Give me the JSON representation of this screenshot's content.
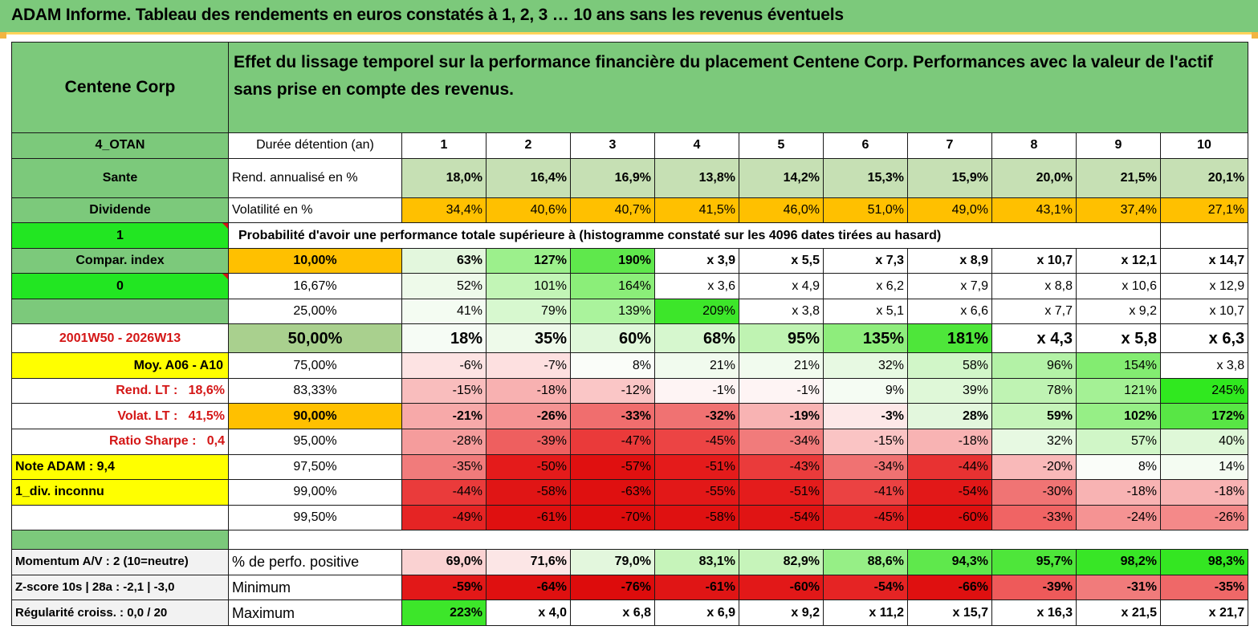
{
  "title": "ADAM Informe. Tableau des rendements en euros constatés à 1, 2, 3 … 10 ans sans les revenus éventuels",
  "header": {
    "company": "Centene Corp",
    "description": "Effet du lissage temporel sur la performance financière du placement Centene Corp. Performances avec la valeur de l'actif sans prise en compte des revenus."
  },
  "left": {
    "code": "4_OTAN",
    "sector": "Sante",
    "dividend_label": "Dividende",
    "value_1": "1",
    "compar_index": "Compar. index",
    "value_0": "0",
    "period": "2001W50 - 2026W13",
    "moy": "Moy. A06 - A10",
    "rend_lt_label": "Rend. LT :",
    "rend_lt_value": "18,6%",
    "volat_lt_label": "Volat. LT :",
    "volat_lt_value": "41,5%",
    "sharpe_label": "Ratio Sharpe :",
    "sharpe_value": "0,4",
    "note": "Note ADAM : 9,4",
    "div_note": "1_div. inconnu",
    "momentum": "Momentum A/V : 2 (10=neutre)",
    "zscore": "Z-score 10s | 28a : -2,1 | -3,0",
    "regularite": "Régularité croiss. : 0,0 / 20"
  },
  "table": {
    "duration_label": "Durée détention (an)",
    "years": [
      "1",
      "2",
      "3",
      "4",
      "5",
      "6",
      "7",
      "8",
      "9",
      "10"
    ],
    "rend_label": "Rend. annualisé en %",
    "rend": [
      "18,0%",
      "16,4%",
      "16,9%",
      "13,8%",
      "14,2%",
      "15,3%",
      "15,9%",
      "20,0%",
      "21,5%",
      "20,1%"
    ],
    "vol_label": "Volatilité en %",
    "vol": [
      "34,4%",
      "40,6%",
      "40,7%",
      "41,5%",
      "46,0%",
      "51,0%",
      "49,0%",
      "43,1%",
      "37,4%",
      "27,1%"
    ],
    "prob_title": "Probabilité d'avoir une performance totale supérieure à (histogramme constaté sur les 4096 dates tirées au hasard)",
    "prob_rows": [
      {
        "label": "10,00%",
        "values": [
          "63%",
          "127%",
          "190%",
          "x 3,9",
          "x 5,5",
          "x 7,3",
          "x 8,9",
          "x 10,7",
          "x 12,1",
          "x 14,7"
        ]
      },
      {
        "label": "16,67%",
        "values": [
          "52%",
          "101%",
          "164%",
          "x 3,6",
          "x 4,9",
          "x 6,2",
          "x 7,9",
          "x 8,8",
          "x 10,6",
          "x 12,9"
        ]
      },
      {
        "label": "25,00%",
        "values": [
          "41%",
          "79%",
          "139%",
          "209%",
          "x 3,8",
          "x 5,1",
          "x 6,6",
          "x 7,7",
          "x 9,2",
          "x 10,7"
        ]
      },
      {
        "label": "50,00%",
        "values": [
          "18%",
          "35%",
          "60%",
          "68%",
          "95%",
          "135%",
          "181%",
          "x 4,3",
          "x 5,8",
          "x 6,3"
        ]
      },
      {
        "label": "75,00%",
        "values": [
          "-6%",
          "-7%",
          "8%",
          "21%",
          "21%",
          "32%",
          "58%",
          "96%",
          "154%",
          "x 3,8"
        ]
      },
      {
        "label": "83,33%",
        "values": [
          "-15%",
          "-18%",
          "-12%",
          "-1%",
          "-1%",
          "9%",
          "39%",
          "78%",
          "121%",
          "245%"
        ]
      },
      {
        "label": "90,00%",
        "values": [
          "-21%",
          "-26%",
          "-33%",
          "-32%",
          "-19%",
          "-3%",
          "28%",
          "59%",
          "102%",
          "172%"
        ]
      },
      {
        "label": "95,00%",
        "values": [
          "-28%",
          "-39%",
          "-47%",
          "-45%",
          "-34%",
          "-15%",
          "-18%",
          "32%",
          "57%",
          "40%"
        ]
      },
      {
        "label": "97,50%",
        "values": [
          "-35%",
          "-50%",
          "-57%",
          "-51%",
          "-43%",
          "-34%",
          "-44%",
          "-20%",
          "8%",
          "14%"
        ]
      },
      {
        "label": "99,00%",
        "values": [
          "-44%",
          "-58%",
          "-63%",
          "-55%",
          "-51%",
          "-41%",
          "-54%",
          "-30%",
          "-18%",
          "-18%"
        ]
      },
      {
        "label": "99,50%",
        "values": [
          "-49%",
          "-61%",
          "-70%",
          "-58%",
          "-54%",
          "-45%",
          "-60%",
          "-33%",
          "-24%",
          "-26%"
        ]
      }
    ],
    "pos_label": "% de perfo. positive",
    "pos": [
      "69,0%",
      "71,6%",
      "79,0%",
      "83,1%",
      "82,9%",
      "88,6%",
      "94,3%",
      "95,7%",
      "98,2%",
      "98,3%"
    ],
    "min_label": "Minimum",
    "min": [
      "-59%",
      "-64%",
      "-76%",
      "-61%",
      "-60%",
      "-54%",
      "-66%",
      "-39%",
      "-31%",
      "-35%"
    ],
    "max_label": "Maximum",
    "max": [
      "223%",
      "x 4,0",
      "x 6,8",
      "x 6,9",
      "x 9,2",
      "x 11,2",
      "x 15,7",
      "x 16,3",
      "x 21,5",
      "x 21,7"
    ]
  },
  "colors": {
    "header_green": "#7cc97b",
    "rend_green": "#c6e0b4",
    "vol_orange": "#ffc000",
    "highlight_yellow": "#ffff00",
    "bright_green": "#22e622",
    "label_red": "#d41616"
  }
}
